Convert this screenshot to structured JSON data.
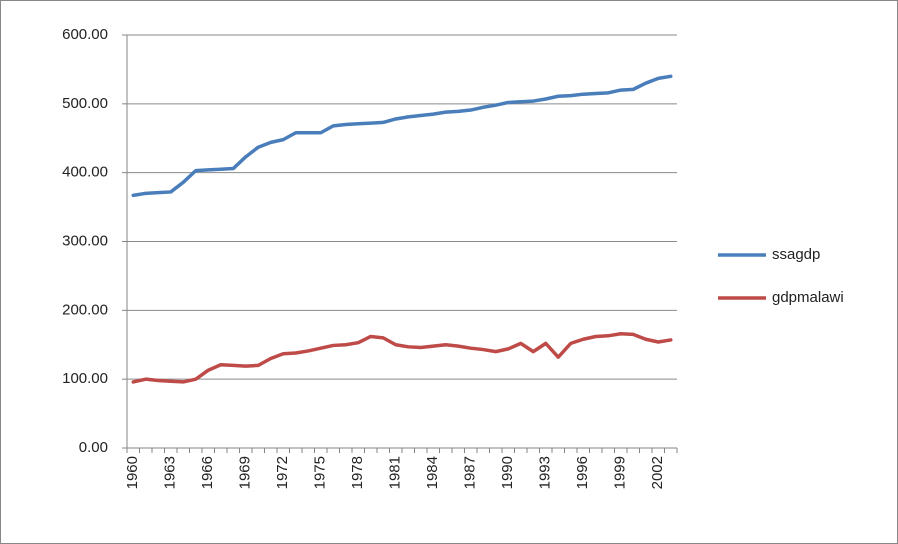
{
  "chart_data": {
    "type": "line",
    "categories": [
      "1960",
      null,
      null,
      "1963",
      null,
      null,
      "1966",
      null,
      null,
      "1969",
      null,
      null,
      "1972",
      null,
      null,
      "1975",
      null,
      null,
      "1978",
      null,
      null,
      "1981",
      null,
      null,
      "1984",
      null,
      null,
      "1987",
      null,
      null,
      "1990",
      null,
      null,
      "1993",
      null,
      null,
      "1996",
      null,
      null,
      "1999",
      null,
      null,
      "2002",
      null
    ],
    "series": [
      {
        "name": "ssagdp",
        "color": "#4a7ebb",
        "values": [
          367,
          370,
          371,
          372,
          386,
          403,
          404,
          405,
          406,
          423,
          437,
          444,
          448,
          458,
          458,
          458,
          468,
          470,
          471,
          472,
          473,
          478,
          481,
          483,
          485,
          488,
          489,
          491,
          495,
          498,
          502,
          503,
          504,
          507,
          511,
          512,
          514,
          515,
          516,
          520,
          521,
          530,
          537,
          540
        ]
      },
      {
        "name": "gdpmalawi",
        "color": "#be4b48",
        "values": [
          96,
          100,
          98,
          97,
          96,
          100,
          113,
          121,
          120,
          119,
          120,
          130,
          137,
          138,
          141,
          145,
          149,
          150,
          153,
          162,
          160,
          150,
          147,
          146,
          148,
          150,
          148,
          145,
          143,
          140,
          144,
          152,
          140,
          152,
          132,
          152,
          158,
          162,
          163,
          166,
          165,
          158,
          154,
          157
        ]
      }
    ],
    "ylim": [
      0,
      600
    ],
    "yticks": [
      {
        "value": 0,
        "label": "0.00"
      },
      {
        "value": 100,
        "label": "100.00"
      },
      {
        "value": 200,
        "label": "200.00"
      },
      {
        "value": 300,
        "label": "300.00"
      },
      {
        "value": 400,
        "label": "400.00"
      },
      {
        "value": 500,
        "label": "500.00"
      },
      {
        "value": 600,
        "label": "600.00"
      }
    ],
    "grid": true,
    "legend": "right"
  }
}
